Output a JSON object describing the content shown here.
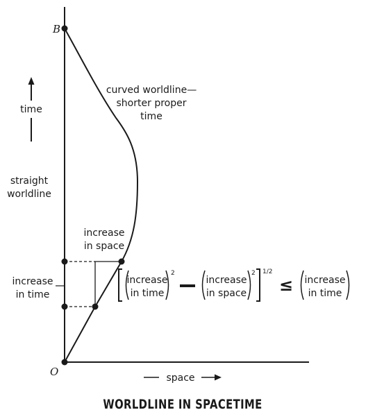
{
  "points": {
    "top": "B",
    "origin": "O"
  },
  "labels": {
    "time": "time",
    "space": "space",
    "straight_worldline": [
      "straight",
      "worldline"
    ],
    "curved_worldline": [
      "curved worldline—",
      "shorter proper",
      "time"
    ],
    "increase_in_space": [
      "increase",
      "in space"
    ],
    "increase_in_time": [
      "increase",
      "in time"
    ]
  },
  "formula": {
    "term1": [
      "increase",
      "in time"
    ],
    "exp1": "2",
    "term2": [
      "increase",
      "in space"
    ],
    "exp2": "2",
    "exp_outer": "1/2",
    "relation": "≤",
    "rhs": [
      "increase",
      "in time"
    ]
  },
  "caption": "WORLDLINE IN SPACETIME"
}
